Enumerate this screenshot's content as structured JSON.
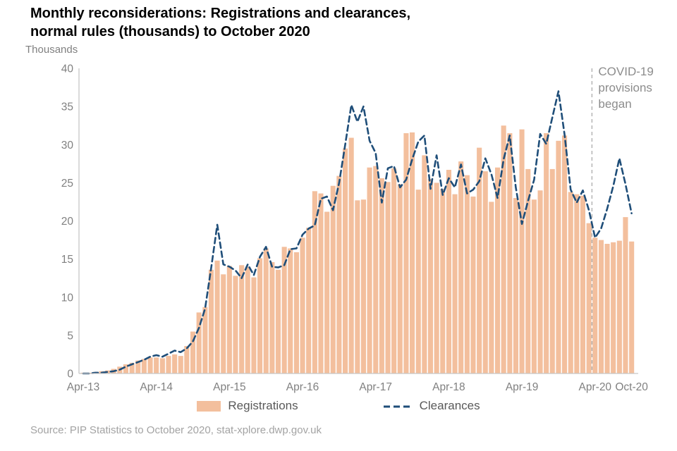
{
  "page": {
    "title_line1": "Monthly reconsiderations:  Registrations and clearances,",
    "title_line2": "normal rules (thousands) to October 2020",
    "y_axis_unit": "Thousands",
    "source": "Source:  PIP Statistics  to October 2020,  stat-xplore.dwp.gov.uk"
  },
  "legend": {
    "registrations_label": "Registrations",
    "clearances_label": "Clearances"
  },
  "annotation": {
    "line1": "COVID-19",
    "line2": "provisions",
    "line3": "began"
  },
  "chart_data": {
    "type": "bar",
    "title": "Monthly reconsiderations: Registrations and clearances, normal rules (thousands) to October 2020",
    "xlabel": "",
    "ylabel": "Thousands",
    "ylim": [
      0,
      40
    ],
    "y_ticks": [
      0,
      5,
      10,
      15,
      20,
      25,
      30,
      35,
      40
    ],
    "grid": false,
    "legend_position": "bottom",
    "months_start": "Apr-13",
    "months_end": "Oct-20",
    "months_count": 91,
    "x_ticks": [
      {
        "index": 0,
        "label": "Apr-13"
      },
      {
        "index": 12,
        "label": "Apr-14"
      },
      {
        "index": 24,
        "label": "Apr-15"
      },
      {
        "index": 36,
        "label": "Apr-16"
      },
      {
        "index": 48,
        "label": "Apr-17"
      },
      {
        "index": 60,
        "label": "Apr-18"
      },
      {
        "index": 72,
        "label": "Apr-19"
      },
      {
        "index": 84,
        "label": "Apr-20"
      },
      {
        "index": 90,
        "label": "Oct-20"
      }
    ],
    "covid_line_month_index": 83.5,
    "colors": {
      "bar": "#f3bf9d",
      "line": "#1f4e79",
      "axis": "#c6c6c6",
      "covid_line": "#b0b0b0",
      "tick_text": "#808080"
    },
    "series": [
      {
        "name": "Registrations",
        "type": "bar",
        "values": [
          0.1,
          0.1,
          0.2,
          0.3,
          0.4,
          0.6,
          0.9,
          1.2,
          1.4,
          1.7,
          1.9,
          2.1,
          2.1,
          2.0,
          2.3,
          2.5,
          2.3,
          3.6,
          5.5,
          8.0,
          8.7,
          13.6,
          14.8,
          13.0,
          14.1,
          12.8,
          14.2,
          14.0,
          12.6,
          15.1,
          16.4,
          14.6,
          13.6,
          16.6,
          16.4,
          15.9,
          17.8,
          19.1,
          23.9,
          23.6,
          21.2,
          24.6,
          25.9,
          29.5,
          30.9,
          22.7,
          22.8,
          27.0,
          27.2,
          25.6,
          25.1,
          26.9,
          24.8,
          31.5,
          31.6,
          24.1,
          28.6,
          25.5,
          25.0,
          24.2,
          26.7,
          23.5,
          27.8,
          26.0,
          23.2,
          29.6,
          26.5,
          22.5,
          27.0,
          32.5,
          31.5,
          23.0,
          32.0,
          26.8,
          22.8,
          24.0,
          31.5,
          26.8,
          30.5,
          31.2,
          23.8,
          23.5,
          23.3,
          19.7,
          17.8,
          17.5,
          17.0,
          17.2,
          17.4,
          20.5,
          17.3
        ]
      },
      {
        "name": "Clearances",
        "type": "line",
        "dashed": true,
        "values": [
          0.0,
          0.0,
          0.1,
          0.1,
          0.2,
          0.3,
          0.5,
          0.9,
          1.2,
          1.5,
          1.8,
          2.2,
          2.4,
          2.2,
          2.6,
          3.0,
          2.8,
          3.3,
          4.2,
          6.0,
          8.5,
          13.8,
          19.5,
          14.3,
          14.0,
          13.5,
          12.5,
          14.3,
          12.9,
          15.3,
          16.6,
          14.0,
          13.9,
          14.2,
          16.3,
          16.4,
          18.2,
          19.0,
          19.4,
          22.9,
          23.2,
          21.4,
          25.0,
          30.0,
          35.2,
          33.0,
          35.0,
          30.5,
          28.9,
          22.4,
          26.9,
          27.2,
          24.4,
          25.4,
          28.1,
          30.4,
          31.2,
          24.2,
          28.6,
          23.4,
          25.6,
          24.4,
          27.4,
          23.6,
          24.1,
          25.2,
          28.2,
          26.1,
          23.0,
          28.1,
          31.2,
          24.4,
          19.6,
          22.6,
          25.4,
          31.4,
          30.1,
          33.6,
          37.0,
          31.3,
          24.1,
          22.4,
          24.0,
          21.4,
          17.8,
          19.0,
          21.6,
          24.6,
          28.2,
          24.8,
          21.0
        ]
      }
    ]
  }
}
